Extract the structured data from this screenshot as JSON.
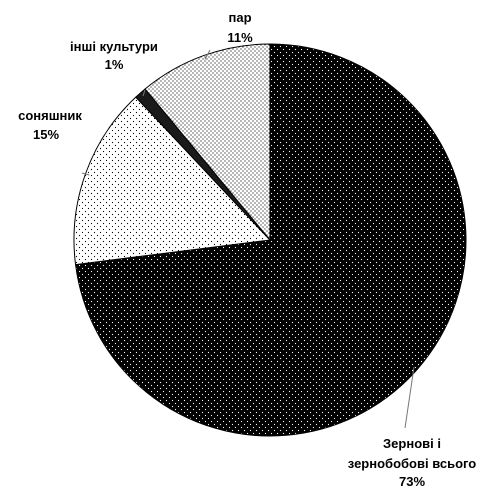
{
  "chart_data": {
    "type": "pie",
    "start_angle_deg": 0,
    "direction": "clockwise",
    "slices": [
      {
        "name": "Зернові і зернобобові всього",
        "value": 73,
        "label_lines": [
          "Зернові і",
          "зернобобові всього"
        ],
        "value_label": "73%",
        "pattern": "dark-dots"
      },
      {
        "name": "соняшник",
        "value": 15,
        "label_lines": [
          "соняшник"
        ],
        "value_label": "15%",
        "pattern": "light-dots"
      },
      {
        "name": "інші культури",
        "value": 1,
        "label_lines": [
          "інші культури"
        ],
        "value_label": "1%",
        "pattern": "solid-dark"
      },
      {
        "name": "пар",
        "value": 11,
        "label_lines": [
          "пар"
        ],
        "value_label": "11%",
        "pattern": "light-dense-dots"
      }
    ]
  }
}
